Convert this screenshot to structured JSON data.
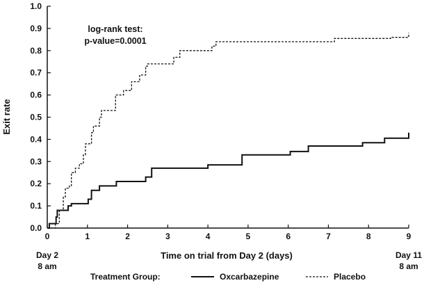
{
  "chart_data": {
    "type": "line",
    "subtype": "step",
    "xlabel": "Time on trial from Day 2 (days)",
    "ylabel": "Exit rate",
    "xlim": [
      0,
      9
    ],
    "ylim": [
      0,
      1
    ],
    "x_ticks": [
      0,
      1,
      2,
      3,
      4,
      5,
      6,
      7,
      8,
      9
    ],
    "y_ticks": [
      "0.0",
      "0.1",
      "0.2",
      "0.3",
      "0.4",
      "0.5",
      "0.6",
      "0.7",
      "0.8",
      "0.9",
      "1.0"
    ],
    "x_start_label": [
      "Day 2",
      "8 am"
    ],
    "x_end_label": [
      "Day 11",
      "8 am"
    ],
    "grid": false,
    "annotation": [
      "log-rank test:",
      "p-value=0.0001"
    ],
    "legend": {
      "title": "Treatment Group:",
      "placement": "bottom"
    },
    "series": [
      {
        "name": "Oxcarbazepine",
        "line_style": "solid",
        "color": "#111111",
        "points": [
          [
            0,
            0.0
          ],
          [
            0.05,
            0.02
          ],
          [
            0.2,
            0.02
          ],
          [
            0.22,
            0.05
          ],
          [
            0.25,
            0.08
          ],
          [
            0.5,
            0.08
          ],
          [
            0.52,
            0.1
          ],
          [
            0.6,
            0.11
          ],
          [
            1.0,
            0.11
          ],
          [
            1.02,
            0.13
          ],
          [
            1.1,
            0.17
          ],
          [
            1.3,
            0.19
          ],
          [
            1.7,
            0.19
          ],
          [
            1.72,
            0.21
          ],
          [
            2.4,
            0.21
          ],
          [
            2.45,
            0.23
          ],
          [
            2.6,
            0.27
          ],
          [
            3.95,
            0.27
          ],
          [
            4.0,
            0.285
          ],
          [
            4.8,
            0.285
          ],
          [
            4.85,
            0.33
          ],
          [
            6.0,
            0.33
          ],
          [
            6.05,
            0.345
          ],
          [
            6.45,
            0.345
          ],
          [
            6.5,
            0.37
          ],
          [
            7.8,
            0.37
          ],
          [
            7.85,
            0.385
          ],
          [
            8.35,
            0.385
          ],
          [
            8.4,
            0.405
          ],
          [
            8.95,
            0.405
          ],
          [
            9.0,
            0.43
          ]
        ]
      },
      {
        "name": "Placebo",
        "line_style": "dashed",
        "color": "#111111",
        "points": [
          [
            0,
            0.0
          ],
          [
            0.2,
            0.02
          ],
          [
            0.3,
            0.08
          ],
          [
            0.4,
            0.14
          ],
          [
            0.45,
            0.18
          ],
          [
            0.55,
            0.19
          ],
          [
            0.6,
            0.25
          ],
          [
            0.7,
            0.27
          ],
          [
            0.8,
            0.29
          ],
          [
            0.9,
            0.33
          ],
          [
            0.95,
            0.38
          ],
          [
            1.1,
            0.43
          ],
          [
            1.15,
            0.46
          ],
          [
            1.3,
            0.5
          ],
          [
            1.35,
            0.53
          ],
          [
            1.65,
            0.53
          ],
          [
            1.7,
            0.6
          ],
          [
            1.9,
            0.62
          ],
          [
            2.1,
            0.66
          ],
          [
            2.3,
            0.69
          ],
          [
            2.45,
            0.73
          ],
          [
            2.5,
            0.74
          ],
          [
            3.05,
            0.74
          ],
          [
            3.15,
            0.77
          ],
          [
            3.3,
            0.8
          ],
          [
            4.0,
            0.8
          ],
          [
            4.1,
            0.82
          ],
          [
            4.2,
            0.84
          ],
          [
            7.05,
            0.84
          ],
          [
            7.15,
            0.855
          ],
          [
            8.5,
            0.855
          ],
          [
            8.55,
            0.86
          ],
          [
            8.95,
            0.86
          ],
          [
            9.0,
            0.88
          ]
        ]
      }
    ]
  }
}
